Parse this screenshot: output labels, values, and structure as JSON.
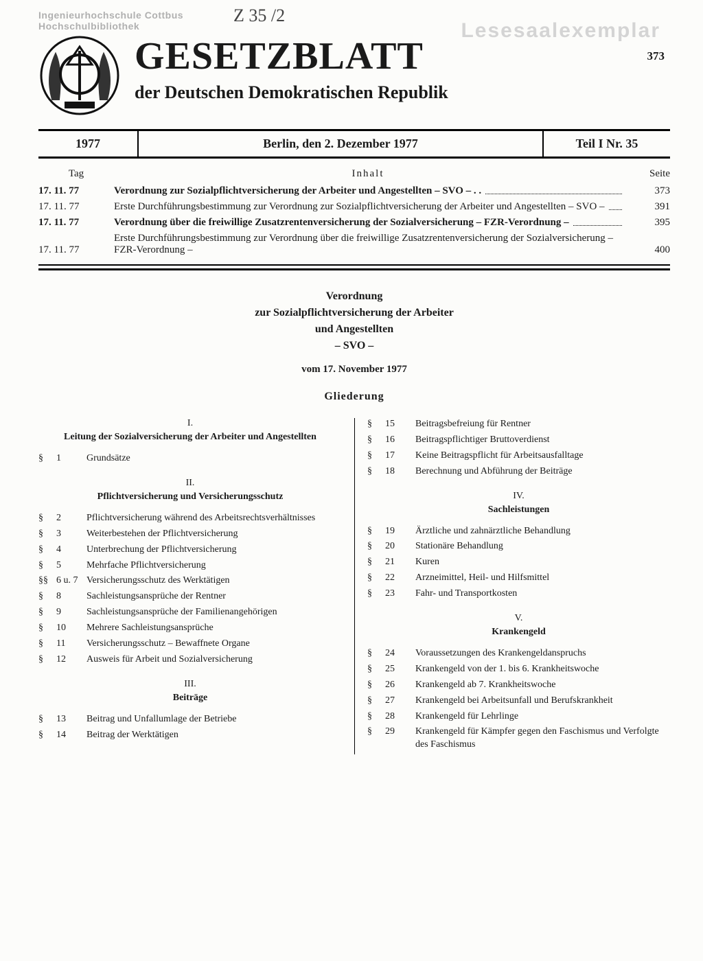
{
  "stamps": {
    "top_left_line1": "Ingenieurhochschule Cottbus",
    "top_left_line2": "Hochschulbibliothek",
    "handnote": "Z 35 /2",
    "right": "Lesesaalexemplar"
  },
  "header": {
    "title": "GESETZBLATT",
    "subtitle": "der Deutschen Demokratischen Republik",
    "page_top": "373"
  },
  "issue": {
    "year": "1977",
    "place_date": "Berlin, den 2. Dezember 1977",
    "part": "Teil I Nr. 35"
  },
  "toc": {
    "h_day": "Tag",
    "h_content": "Inhalt",
    "h_page": "Seite",
    "rows": [
      {
        "date": "17. 11. 77",
        "bold": true,
        "text": "Verordnung zur Sozialpflichtversicherung der Arbeiter und Angestellten – SVO – . .",
        "page": "373"
      },
      {
        "date": "17. 11. 77",
        "bold": false,
        "text": "Erste Durchführungsbestimmung zur Verordnung zur Sozialpflichtversicherung der Arbeiter und Angestellten – SVO –",
        "page": "391"
      },
      {
        "date": "17. 11. 77",
        "bold": true,
        "text": "Verordnung über die freiwillige Zusatzrentenversicherung der Sozialversicherung – FZR-Verordnung –",
        "page": "395"
      },
      {
        "date": "17. 11. 77",
        "bold": false,
        "text": "Erste Durchführungsbestimmung zur Verordnung über die freiwillige Zusatzrentenversicherung der Sozialversicherung – FZR-Verordnung –",
        "page": "400"
      }
    ]
  },
  "doc": {
    "line1": "Verordnung",
    "line2": "zur Sozialpflichtversicherung der Arbeiter",
    "line3": "und Angestellten",
    "line4": "– SVO –",
    "date": "vom 17. November 1977",
    "gliederung": "Gliederung"
  },
  "sections_left": [
    {
      "num": "I.",
      "title": "Leitung der Sozialversicherung der Arbeiter und Angestellten",
      "items": [
        {
          "sym": "§",
          "n": "1",
          "t": "Grundsätze"
        }
      ]
    },
    {
      "num": "II.",
      "title": "Pflichtversicherung und Versicherungsschutz",
      "items": [
        {
          "sym": "§",
          "n": "2",
          "t": "Pflichtversicherung während des Arbeitsrechtsverhältnisses"
        },
        {
          "sym": "§",
          "n": "3",
          "t": "Weiterbestehen der Pflichtversicherung"
        },
        {
          "sym": "§",
          "n": "4",
          "t": "Unterbrechung der Pflichtversicherung"
        },
        {
          "sym": "§",
          "n": "5",
          "t": "Mehrfache Pflichtversicherung"
        },
        {
          "sym": "§§",
          "n": "6 u. 7",
          "t": "Versicherungsschutz des Werktätigen"
        },
        {
          "sym": "§",
          "n": "8",
          "t": "Sachleistungsansprüche der Rentner"
        },
        {
          "sym": "§",
          "n": "9",
          "t": "Sachleistungsansprüche der Familienangehörigen"
        },
        {
          "sym": "§",
          "n": "10",
          "t": "Mehrere Sachleistungsansprüche"
        },
        {
          "sym": "§",
          "n": "11",
          "t": "Versicherungsschutz – Bewaffnete Organe"
        },
        {
          "sym": "§",
          "n": "12",
          "t": "Ausweis für Arbeit und Sozialversicherung"
        }
      ]
    },
    {
      "num": "III.",
      "title": "Beiträge",
      "items": [
        {
          "sym": "§",
          "n": "13",
          "t": "Beitrag und Unfallumlage der Betriebe"
        },
        {
          "sym": "§",
          "n": "14",
          "t": "Beitrag der Werktätigen"
        }
      ]
    }
  ],
  "sections_right": [
    {
      "num": "",
      "title": "",
      "items": [
        {
          "sym": "§",
          "n": "15",
          "t": "Beitragsbefreiung für Rentner"
        },
        {
          "sym": "§",
          "n": "16",
          "t": "Beitragspflichtiger Bruttoverdienst"
        },
        {
          "sym": "§",
          "n": "17",
          "t": "Keine Beitragspflicht für Arbeitsausfalltage"
        },
        {
          "sym": "§",
          "n": "18",
          "t": "Berechnung und Abführung der Beiträge"
        }
      ]
    },
    {
      "num": "IV.",
      "title": "Sachleistungen",
      "items": [
        {
          "sym": "§",
          "n": "19",
          "t": "Ärztliche und zahnärztliche Behandlung"
        },
        {
          "sym": "§",
          "n": "20",
          "t": "Stationäre Behandlung"
        },
        {
          "sym": "§",
          "n": "21",
          "t": "Kuren"
        },
        {
          "sym": "§",
          "n": "22",
          "t": "Arzneimittel, Heil- und Hilfsmittel"
        },
        {
          "sym": "§",
          "n": "23",
          "t": "Fahr- und Transportkosten"
        }
      ]
    },
    {
      "num": "V.",
      "title": "Krankengeld",
      "items": [
        {
          "sym": "§",
          "n": "24",
          "t": "Voraussetzungen des Krankengeldanspruchs"
        },
        {
          "sym": "§",
          "n": "25",
          "t": "Krankengeld von der 1. bis 6. Krankheitswoche"
        },
        {
          "sym": "§",
          "n": "26",
          "t": "Krankengeld ab 7. Krankheitswoche"
        },
        {
          "sym": "§",
          "n": "27",
          "t": "Krankengeld bei Arbeitsunfall und Berufskrankheit"
        },
        {
          "sym": "§",
          "n": "28",
          "t": "Krankengeld für Lehrlinge"
        },
        {
          "sym": "§",
          "n": "29",
          "t": "Krankengeld für Kämpfer gegen den Faschismus und Verfolgte des Faschismus"
        }
      ]
    }
  ]
}
